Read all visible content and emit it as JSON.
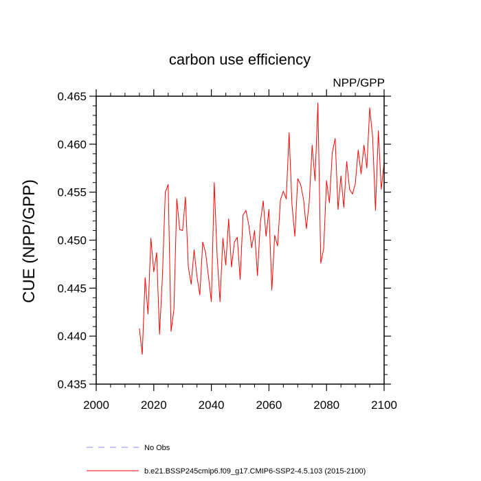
{
  "chart_data": {
    "type": "line",
    "title": "carbon use efficiency",
    "subtitle": "NPP/GPP",
    "xlabel": "",
    "ylabel": "CUE  (NPP/GPP)",
    "xlim": [
      2000,
      2100
    ],
    "ylim": [
      0.435,
      0.465
    ],
    "x_ticks": [
      2000,
      2020,
      2040,
      2060,
      2080,
      2100
    ],
    "x_tick_labels": [
      "2000",
      "2020",
      "2040",
      "2060",
      "2080",
      "2100"
    ],
    "y_ticks": [
      0.435,
      0.44,
      0.445,
      0.45,
      0.455,
      0.46,
      0.465
    ],
    "y_tick_labels": [
      "0.435",
      "0.440",
      "0.445",
      "0.450",
      "0.455",
      "0.460",
      "0.465"
    ],
    "grid": false,
    "legend": [
      {
        "label": "No Obs",
        "color": "#8a8aff",
        "style": "dashed"
      },
      {
        "label": "b.e21.BSSP245cmip6.f09_g17.CMIP6-SSP2-4.5.103 (2015-2100)",
        "color": "#ff0000",
        "style": "solid"
      }
    ],
    "series": [
      {
        "name": "b.e21.BSSP245cmip6.f09_g17.CMIP6-SSP2-4.5.103 (2015-2100)",
        "color": "#ff0000",
        "x": [
          2015,
          2016,
          2017,
          2018,
          2019,
          2020,
          2021,
          2022,
          2023,
          2024,
          2025,
          2026,
          2027,
          2028,
          2029,
          2030,
          2031,
          2032,
          2033,
          2034,
          2035,
          2036,
          2037,
          2038,
          2039,
          2040,
          2041,
          2042,
          2043,
          2044,
          2045,
          2046,
          2047,
          2048,
          2049,
          2050,
          2051,
          2052,
          2053,
          2054,
          2055,
          2056,
          2057,
          2058,
          2059,
          2060,
          2061,
          2062,
          2063,
          2064,
          2065,
          2066,
          2067,
          2068,
          2069,
          2070,
          2071,
          2072,
          2073,
          2074,
          2075,
          2076,
          2077,
          2078,
          2079,
          2080,
          2081,
          2082,
          2083,
          2084,
          2085,
          2086,
          2087,
          2088,
          2089,
          2090,
          2091,
          2092,
          2093,
          2094,
          2095,
          2096,
          2097,
          2098,
          2099,
          2100
        ],
        "values": [
          0.4408,
          0.4381,
          0.4461,
          0.4423,
          0.4502,
          0.4467,
          0.4487,
          0.4402,
          0.4462,
          0.455,
          0.4558,
          0.4405,
          0.4428,
          0.4543,
          0.4511,
          0.451,
          0.4545,
          0.4472,
          0.4454,
          0.449,
          0.4462,
          0.4443,
          0.4498,
          0.4487,
          0.4462,
          0.4436,
          0.456,
          0.4484,
          0.4436,
          0.4502,
          0.4474,
          0.4522,
          0.4472,
          0.4498,
          0.4503,
          0.4459,
          0.4526,
          0.4531,
          0.4516,
          0.4492,
          0.451,
          0.4463,
          0.4518,
          0.4541,
          0.4504,
          0.4532,
          0.4448,
          0.4505,
          0.4494,
          0.4542,
          0.4551,
          0.4543,
          0.4612,
          0.4537,
          0.4504,
          0.4564,
          0.4558,
          0.4543,
          0.4512,
          0.454,
          0.4599,
          0.4562,
          0.4643,
          0.4476,
          0.4491,
          0.4562,
          0.4539,
          0.4591,
          0.4606,
          0.4532,
          0.4567,
          0.4534,
          0.4582,
          0.4553,
          0.4548,
          0.4559,
          0.4594,
          0.4569,
          0.4599,
          0.4575,
          0.4638,
          0.4608,
          0.4531,
          0.4614,
          0.4553,
          0.4581
        ]
      }
    ]
  }
}
